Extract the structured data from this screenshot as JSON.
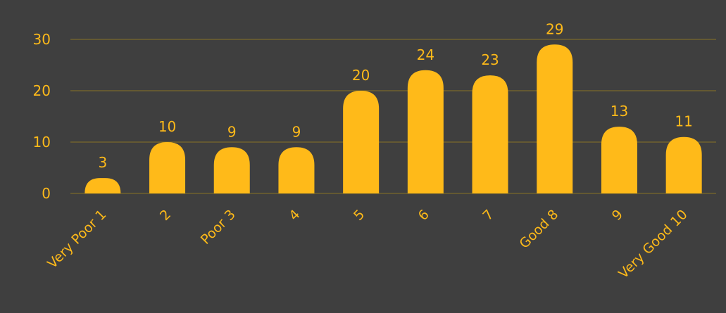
{
  "colors": {
    "background": "#3f3f3f",
    "bar": "#FFBA19",
    "text": "#FFBA19",
    "grid": "#8a7326"
  },
  "chart_data": {
    "type": "bar",
    "categories": [
      "Very Poor  1",
      "2",
      "Poor  3",
      "4",
      "5",
      "6",
      "7",
      "Good  8",
      "9",
      "Very Good  10"
    ],
    "values": [
      3,
      10,
      9,
      9,
      20,
      24,
      23,
      29,
      13,
      11
    ],
    "data_labels": [
      "3",
      "10",
      "9",
      "9",
      "20",
      "24",
      "23",
      "29",
      "13",
      "11"
    ],
    "yticks": [
      "0",
      "10",
      "20",
      "30"
    ],
    "ylim": [
      0,
      30
    ],
    "title": "",
    "xlabel": "",
    "ylabel": "",
    "grid": true,
    "legend": "none",
    "bar_style": "rounded-top"
  }
}
